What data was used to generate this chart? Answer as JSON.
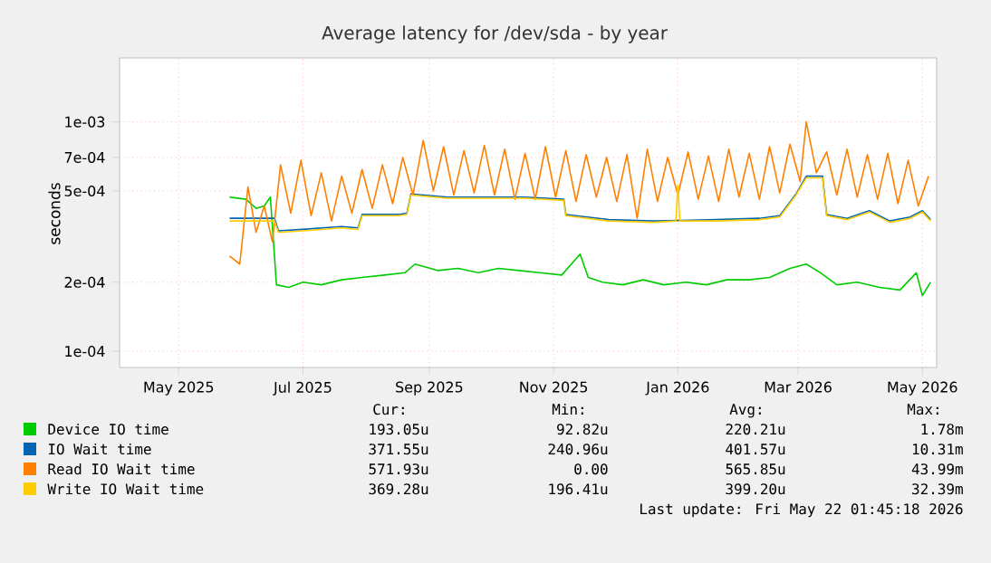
{
  "chart_data": {
    "type": "line",
    "title": "Average latency for /dev/sda - by year",
    "ylabel": "seconds",
    "log": "y",
    "grid": true,
    "legend": "bottom",
    "marker": "none",
    "xlim": [
      "2025-04-02",
      "2026-05-08"
    ],
    "xticks": [
      {
        "value": "2025-05-01",
        "label": "May 2025"
      },
      {
        "value": "2025-07-01",
        "label": "Jul 2025"
      },
      {
        "value": "2025-09-01",
        "label": "Sep 2025"
      },
      {
        "value": "2025-11-01",
        "label": "Nov 2025"
      },
      {
        "value": "2026-01-01",
        "label": "Jan 2026"
      },
      {
        "value": "2026-03-01",
        "label": "Mar 2026"
      },
      {
        "value": "2026-05-01",
        "label": "May 2026"
      }
    ],
    "ylim": [
      8.5e-05,
      0.0019
    ],
    "yticks": [
      {
        "value": 0.0001,
        "label": "1e-04"
      },
      {
        "value": 0.0002,
        "label": "2e-04"
      },
      {
        "value": 0.0005,
        "label": "5e-04"
      },
      {
        "value": 0.0007,
        "label": "7e-04"
      },
      {
        "value": 0.001,
        "label": "1e-03"
      }
    ],
    "series": [
      {
        "name": "Device IO time",
        "color": "#00cc00",
        "x": [
          "2025-05-26",
          "2025-06-03",
          "2025-06-08",
          "2025-06-12",
          "2025-06-15",
          "2025-06-18",
          "2025-06-24",
          "2025-07-01",
          "2025-07-10",
          "2025-07-20",
          "2025-07-30",
          "2025-08-10",
          "2025-08-20",
          "2025-08-25",
          "2025-09-05",
          "2025-09-15",
          "2025-09-25",
          "2025-10-05",
          "2025-10-15",
          "2025-10-25",
          "2025-11-05",
          "2025-11-14",
          "2025-11-18",
          "2025-11-25",
          "2025-12-05",
          "2025-12-15",
          "2025-12-25",
          "2026-01-05",
          "2026-01-15",
          "2026-01-25",
          "2026-02-05",
          "2026-02-15",
          "2026-02-25",
          "2026-03-05",
          "2026-03-12",
          "2026-03-20",
          "2026-03-30",
          "2026-04-10",
          "2026-04-20",
          "2026-04-28",
          "2026-05-01",
          "2026-05-05"
        ],
        "values": [
          0.00047,
          0.00046,
          0.00042,
          0.00043,
          0.00047,
          0.000195,
          0.00019,
          0.0002,
          0.000195,
          0.000205,
          0.00021,
          0.000215,
          0.00022,
          0.00024,
          0.000225,
          0.00023,
          0.00022,
          0.00023,
          0.000225,
          0.00022,
          0.000215,
          0.000265,
          0.00021,
          0.0002,
          0.000195,
          0.000205,
          0.000195,
          0.0002,
          0.000195,
          0.000205,
          0.000205,
          0.00021,
          0.00023,
          0.00024,
          0.00022,
          0.000195,
          0.0002,
          0.00019,
          0.000185,
          0.00022,
          0.000175,
          0.0002
        ]
      },
      {
        "name": "IO Wait time",
        "color": "#0066b3",
        "x": [
          "2025-05-26",
          "2025-06-17",
          "2025-06-19",
          "2025-07-01",
          "2025-07-20",
          "2025-07-28",
          "2025-07-30",
          "2025-08-17",
          "2025-08-21",
          "2025-08-23",
          "2025-09-10",
          "2025-10-18",
          "2025-11-06",
          "2025-11-07",
          "2025-11-28",
          "2025-12-20",
          "2026-01-20",
          "2026-02-10",
          "2026-02-20",
          "2026-02-28",
          "2026-03-05",
          "2026-03-13",
          "2026-03-15",
          "2026-03-25",
          "2026-04-05",
          "2026-04-15",
          "2026-04-25",
          "2026-05-01",
          "2026-05-05"
        ],
        "values": [
          0.00038,
          0.00038,
          0.000335,
          0.00034,
          0.00035,
          0.000345,
          0.000395,
          0.000395,
          0.0004,
          0.000485,
          0.00047,
          0.00047,
          0.00046,
          0.000395,
          0.000375,
          0.00037,
          0.000375,
          0.00038,
          0.00039,
          0.000485,
          0.00058,
          0.00058,
          0.000395,
          0.00038,
          0.00041,
          0.00037,
          0.000385,
          0.00041,
          0.000375
        ]
      },
      {
        "name": "Read IO Wait time",
        "color": "#ff8000",
        "x": [
          "2025-05-26",
          "2025-05-31",
          "2025-06-04",
          "2025-06-08",
          "2025-06-12",
          "2025-06-16",
          "2025-06-20",
          "2025-06-25",
          "2025-06-30",
          "2025-07-05",
          "2025-07-10",
          "2025-07-15",
          "2025-07-20",
          "2025-07-25",
          "2025-07-30",
          "2025-08-04",
          "2025-08-09",
          "2025-08-14",
          "2025-08-19",
          "2025-08-24",
          "2025-08-29",
          "2025-09-03",
          "2025-09-08",
          "2025-09-13",
          "2025-09-18",
          "2025-09-23",
          "2025-09-28",
          "2025-10-03",
          "2025-10-08",
          "2025-10-13",
          "2025-10-18",
          "2025-10-23",
          "2025-10-28",
          "2025-11-02",
          "2025-11-07",
          "2025-11-12",
          "2025-11-17",
          "2025-11-22",
          "2025-11-27",
          "2025-12-02",
          "2025-12-07",
          "2025-12-12",
          "2025-12-17",
          "2025-12-22",
          "2025-12-27",
          "2026-01-01",
          "2026-01-06",
          "2026-01-11",
          "2026-01-16",
          "2026-01-21",
          "2026-01-26",
          "2026-01-31",
          "2026-02-05",
          "2026-02-10",
          "2026-02-15",
          "2026-02-20",
          "2026-02-25",
          "2026-03-02",
          "2026-03-05",
          "2026-03-10",
          "2026-03-15",
          "2026-03-20",
          "2026-03-25",
          "2026-03-30",
          "2026-04-04",
          "2026-04-09",
          "2026-04-14",
          "2026-04-19",
          "2026-04-24",
          "2026-04-29",
          "2026-05-04"
        ],
        "values": [
          0.00026,
          0.00024,
          0.00052,
          0.00033,
          0.00043,
          0.0003,
          0.00065,
          0.0004,
          0.00068,
          0.00039,
          0.0006,
          0.00037,
          0.00058,
          0.0004,
          0.00062,
          0.00042,
          0.00065,
          0.00044,
          0.0007,
          0.00048,
          0.00083,
          0.0005,
          0.00078,
          0.00048,
          0.00075,
          0.00049,
          0.00079,
          0.00048,
          0.00076,
          0.00046,
          0.00073,
          0.00046,
          0.00078,
          0.00047,
          0.00075,
          0.00045,
          0.00072,
          0.00047,
          0.0007,
          0.00045,
          0.00072,
          0.00038,
          0.00076,
          0.00045,
          0.0007,
          0.00048,
          0.00074,
          0.00046,
          0.00071,
          0.00045,
          0.00076,
          0.00047,
          0.00073,
          0.00046,
          0.00078,
          0.00049,
          0.0008,
          0.00055,
          0.001,
          0.0006,
          0.00074,
          0.00048,
          0.00076,
          0.00047,
          0.00072,
          0.00046,
          0.00073,
          0.00044,
          0.00068,
          0.00043,
          0.00058
        ]
      },
      {
        "name": "Write IO Wait time",
        "color": "#ffcc00",
        "x": [
          "2025-05-26",
          "2025-06-17",
          "2025-06-19",
          "2025-07-01",
          "2025-07-20",
          "2025-07-28",
          "2025-07-30",
          "2025-08-17",
          "2025-08-21",
          "2025-08-23",
          "2025-09-10",
          "2025-10-18",
          "2025-11-06",
          "2025-11-07",
          "2025-11-28",
          "2025-12-20",
          "2025-12-31",
          "2026-01-01",
          "2026-01-02",
          "2026-01-20",
          "2026-02-10",
          "2026-02-20",
          "2026-02-28",
          "2026-03-05",
          "2026-03-13",
          "2026-03-15",
          "2026-03-25",
          "2026-04-05",
          "2026-04-15",
          "2026-04-25",
          "2026-05-01",
          "2026-05-05"
        ],
        "values": [
          0.00037,
          0.00037,
          0.00033,
          0.000335,
          0.000345,
          0.00034,
          0.00039,
          0.00039,
          0.000395,
          0.00048,
          0.000465,
          0.000465,
          0.000455,
          0.00039,
          0.00037,
          0.000365,
          0.00037,
          0.00053,
          0.00037,
          0.00037,
          0.000375,
          0.000385,
          0.00048,
          0.00057,
          0.00057,
          0.00039,
          0.000375,
          0.000405,
          0.000365,
          0.00038,
          0.000405,
          0.00037
        ]
      }
    ],
    "annotations": [
      "Cur:",
      "Min:",
      "Avg:",
      "Max:",
      "193.05u",
      "92.82u",
      "220.21u",
      "1.78m",
      "371.55u",
      "240.96u",
      "401.57u",
      "10.31m",
      "571.93u",
      "0.00",
      "565.85u",
      "43.99m",
      "369.28u",
      "196.41u",
      "399.20u",
      "32.39m",
      "Last update: Fri May 22 01:45:18 2026"
    ]
  }
}
